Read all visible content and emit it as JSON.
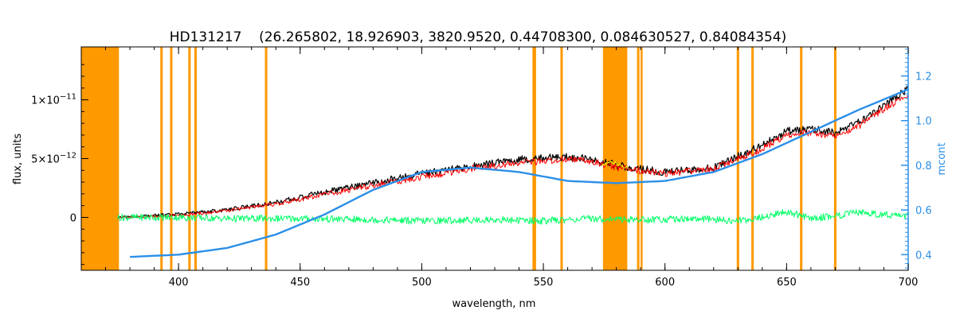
{
  "chart_data": {
    "type": "line",
    "title": "HD131217    (26.265802, 18.926903, 3820.9520, 0.44708300, 0.084630527, 0.84084354)",
    "xlabel": "wavelength, nm",
    "ylabel": "flux, units",
    "y2label": "mcont",
    "xlim": [
      360,
      700
    ],
    "ylim": [
      -0.45,
      1.45
    ],
    "ylim_unit": "1e-11",
    "y2lim": [
      0.33,
      1.33
    ],
    "xticks": [
      "400",
      "450",
      "500",
      "550",
      "600",
      "650",
      "700"
    ],
    "xtick_values": [
      400,
      450,
      500,
      550,
      600,
      650,
      700
    ],
    "yticks": [
      {
        "value": 0,
        "base": "0",
        "exp": ""
      },
      {
        "value": 0.5,
        "base": "5×10",
        "exp": "−12"
      },
      {
        "value": 1.0,
        "base": "1×10",
        "exp": "−11"
      }
    ],
    "y2ticks": [
      "0.4",
      "0.6",
      "0.8",
      "1.0",
      "1.2"
    ],
    "y2tick_values": [
      0.4,
      0.6,
      0.8,
      1.0,
      1.2
    ],
    "masked_bands": [
      [
        360,
        375.5
      ],
      [
        392.5,
        393.5
      ],
      [
        396.5,
        397.5
      ],
      [
        404,
        405
      ],
      [
        406.5,
        407.5
      ],
      [
        435.5,
        436.5
      ],
      [
        545.5,
        547
      ],
      [
        557,
        558
      ],
      [
        574.5,
        584.5
      ],
      [
        588.5,
        589.5
      ],
      [
        590,
        590.8
      ],
      [
        629.5,
        630.5
      ],
      [
        635.5,
        636.5
      ],
      [
        655.5,
        656.5
      ],
      [
        669.5,
        670.5
      ]
    ],
    "series": [
      {
        "color": "#000000",
        "description_role": "observed",
        "x": [
          375,
          390,
          400,
          420,
          440,
          460,
          480,
          500,
          520,
          540,
          560,
          570,
          580,
          600,
          620,
          640,
          650,
          660,
          670,
          680,
          690,
          700
        ],
        "y": [
          0.0,
          0.02,
          0.03,
          0.07,
          0.13,
          0.22,
          0.3,
          0.38,
          0.44,
          0.5,
          0.52,
          0.5,
          0.45,
          0.39,
          0.43,
          0.62,
          0.74,
          0.76,
          0.73,
          0.82,
          0.96,
          1.1
        ]
      },
      {
        "color": "#ff0000",
        "description_role": "model",
        "x": [
          375,
          390,
          400,
          420,
          440,
          460,
          480,
          500,
          520,
          540,
          560,
          570,
          580,
          600,
          620,
          640,
          650,
          660,
          670,
          680,
          690,
          700
        ],
        "y": [
          0.0,
          0.01,
          0.02,
          0.06,
          0.12,
          0.2,
          0.28,
          0.35,
          0.42,
          0.47,
          0.5,
          0.48,
          0.43,
          0.38,
          0.42,
          0.59,
          0.71,
          0.73,
          0.7,
          0.79,
          0.93,
          1.05
        ]
      },
      {
        "color": "#ffff00",
        "description_role": "masked-region",
        "x": [
          574,
          577,
          580,
          583,
          585
        ],
        "y": [
          0.44,
          0.48,
          0.46,
          0.44,
          0.42
        ]
      },
      {
        "color": "#00ff66",
        "description_role": "residual",
        "x": [
          375,
          400,
          420,
          450,
          480,
          500,
          530,
          550,
          570,
          590,
          610,
          630,
          640,
          650,
          660,
          680,
          700
        ],
        "y": [
          0.0,
          0.0,
          -0.01,
          -0.01,
          -0.02,
          -0.03,
          -0.02,
          -0.03,
          -0.01,
          -0.02,
          -0.01,
          -0.03,
          0.0,
          0.05,
          -0.01,
          0.04,
          0.01
        ]
      },
      {
        "color": "#2b8fe8",
        "axis": "right",
        "description_role": "mcont",
        "x": [
          380,
          400,
          420,
          440,
          460,
          480,
          500,
          520,
          540,
          560,
          580,
          600,
          620,
          640,
          660,
          680,
          700
        ],
        "y": [
          0.39,
          0.4,
          0.43,
          0.49,
          0.58,
          0.69,
          0.77,
          0.79,
          0.77,
          0.73,
          0.72,
          0.73,
          0.77,
          0.85,
          0.95,
          1.05,
          1.14
        ]
      }
    ],
    "grid": false,
    "legend": "none"
  }
}
